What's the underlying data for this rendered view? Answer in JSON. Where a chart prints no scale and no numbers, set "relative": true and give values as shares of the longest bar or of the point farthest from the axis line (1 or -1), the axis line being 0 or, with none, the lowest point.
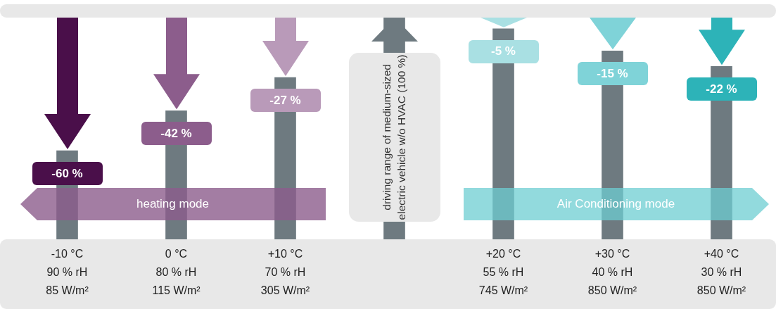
{
  "chart_data": {
    "type": "bar",
    "relative": true,
    "categories": [
      "-10 °C\n90 % rH\n85 W/m²",
      "0 °C\n80 % rH\n115 W/m²",
      "+10 °C\n70 % rH\n305 W/m²",
      null,
      "+20 °C\n55 % rH\n745 W/m²",
      "+30 °C\n40 % rH\n850 W/m²",
      "+40 °C\n30 % rH\n850 W/m²"
    ],
    "values": [
      0.4,
      0.58,
      0.73,
      1,
      0.95,
      0.85,
      0.78
    ],
    "color": "#6e7a80",
    "annotations": [
      "heating mode",
      "Air Conditioning mode",
      "driving range of medium-sized electric vehicle w/o HVAC (100 %)",
      {
        "text": "-60 %",
        "x": "-10 °C\n90 % rH\n85 W/m²",
        "y": 0.4
      },
      {
        "text": "-42 %",
        "x": "0 °C\n80 % rH\n115 W/m²",
        "y": 0.58
      },
      {
        "text": "-27 %",
        "x": "+10 °C\n70 % rH\n305 W/m²",
        "y": 0.73
      },
      {
        "text": "-5 %",
        "x": "+20 °C\n55 % rH\n745 W/m²",
        "y": 0.95
      },
      {
        "text": "-15 %",
        "x": "+30 °C\n40 % rH\n850 W/m²",
        "y": 0.85
      },
      {
        "text": "-22 %",
        "x": "+40 °C\n30 % rH\n850 W/m²",
        "y": 0.78
      }
    ],
    "grid": false,
    "legend": false
  }
}
